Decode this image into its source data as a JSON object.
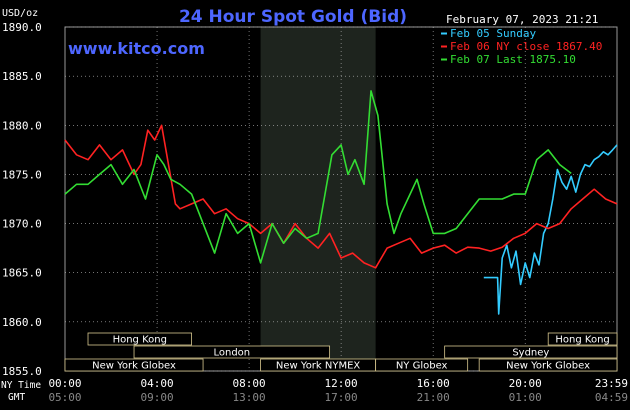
{
  "chart_data": {
    "type": "line",
    "title": "24 Hour Spot Gold (Bid)",
    "website": "www.kitco.com",
    "timestamp": "February 07, 2023 21:21",
    "y_unit": "USD/oz",
    "ylim": [
      1855.0,
      1890.0
    ],
    "y_ticks": [
      "1890.0",
      "1885.0",
      "1880.0",
      "1875.0",
      "1870.0",
      "1865.0",
      "1860.0",
      "1855.0"
    ],
    "x_label_rows": [
      "NY Time",
      "GMT"
    ],
    "x_ticks_ny": [
      "00:00",
      "04:00",
      "08:00",
      "12:00",
      "16:00",
      "20:00",
      "23:59"
    ],
    "x_ticks_gmt": [
      "05:00",
      "09:00",
      "13:00",
      "17:00",
      "21:00",
      "01:00",
      "04:59"
    ],
    "grid": true,
    "legend_position": "top-right",
    "highlight_hours": [
      8.5,
      13.5
    ],
    "series": [
      {
        "name": "Feb 05 Sunday",
        "color": "#33ccff",
        "x": [
          18.2,
          18.5,
          18.8,
          18.85,
          19.0,
          19.2,
          19.4,
          19.6,
          19.8,
          20.0,
          20.2,
          20.4,
          20.6,
          20.8,
          21.0,
          21.2,
          21.4,
          21.6,
          21.8,
          22.0,
          22.2,
          22.4,
          22.6,
          22.8,
          23.0,
          23.2,
          23.4,
          23.6,
          23.8,
          23.99
        ],
        "y": [
          1864.5,
          1864.5,
          1864.5,
          1860.8,
          1866.5,
          1867.8,
          1865.5,
          1867.2,
          1863.8,
          1866.0,
          1864.5,
          1867.0,
          1865.8,
          1869.0,
          1870.0,
          1872.5,
          1875.5,
          1874.2,
          1873.5,
          1874.8,
          1873.2,
          1875.0,
          1876.0,
          1875.8,
          1876.5,
          1876.8,
          1877.3,
          1877.0,
          1877.5,
          1878.0
        ]
      },
      {
        "name": "Feb 06 NY close 1867.40",
        "color": "#ff2222",
        "x": [
          0.0,
          0.5,
          1.0,
          1.5,
          2.0,
          2.5,
          3.0,
          3.3,
          3.6,
          3.9,
          4.2,
          4.5,
          4.8,
          5.0,
          5.5,
          6.0,
          6.5,
          7.0,
          7.5,
          8.0,
          8.5,
          9.0,
          9.5,
          10.0,
          10.5,
          11.0,
          11.5,
          12.0,
          12.5,
          13.0,
          13.5,
          14.0,
          14.5,
          15.0,
          15.5,
          16.0,
          16.5,
          17.0,
          17.5,
          18.0,
          18.5,
          19.0,
          19.5,
          20.0,
          20.5,
          21.0,
          21.5,
          22.0,
          22.5,
          23.0,
          23.5,
          23.99
        ],
        "y": [
          1878.5,
          1877.0,
          1876.5,
          1878.0,
          1876.5,
          1877.5,
          1875.0,
          1876.0,
          1879.5,
          1878.5,
          1880.0,
          1876.0,
          1872.0,
          1871.5,
          1872.0,
          1872.5,
          1871.0,
          1871.5,
          1870.5,
          1870.0,
          1869.0,
          1870.0,
          1868.0,
          1870.0,
          1868.5,
          1867.5,
          1869.0,
          1866.5,
          1867.0,
          1866.0,
          1865.5,
          1867.5,
          1868.0,
          1868.5,
          1867.0,
          1867.5,
          1867.8,
          1867.0,
          1867.6,
          1867.5,
          1867.2,
          1867.6,
          1868.5,
          1869.0,
          1870.0,
          1869.5,
          1870.0,
          1871.5,
          1872.5,
          1873.5,
          1872.5,
          1872.0
        ]
      },
      {
        "name": "Feb 07 Last 1875.10",
        "color": "#33dd33",
        "x": [
          0.0,
          0.5,
          1.0,
          1.5,
          2.0,
          2.5,
          3.0,
          3.5,
          4.0,
          4.3,
          4.6,
          5.0,
          5.5,
          6.0,
          6.5,
          7.0,
          7.5,
          8.0,
          8.5,
          9.0,
          9.5,
          10.0,
          10.5,
          11.0,
          11.3,
          11.6,
          12.0,
          12.3,
          12.6,
          13.0,
          13.3,
          13.6,
          14.0,
          14.3,
          14.6,
          15.0,
          15.3,
          15.6,
          16.0,
          16.5,
          17.0,
          17.5,
          18.0,
          18.5,
          19.0,
          19.5,
          20.0,
          20.5,
          21.0,
          21.5,
          22.0
        ],
        "y": [
          1873.0,
          1874.0,
          1874.0,
          1875.0,
          1876.0,
          1874.0,
          1875.5,
          1872.5,
          1877.0,
          1876.0,
          1874.5,
          1874.0,
          1873.0,
          1870.0,
          1867.0,
          1871.0,
          1869.0,
          1870.0,
          1866.0,
          1870.0,
          1868.0,
          1869.5,
          1868.5,
          1869.0,
          1873.0,
          1877.0,
          1878.0,
          1875.0,
          1876.5,
          1874.0,
          1883.5,
          1881.0,
          1872.0,
          1869.0,
          1871.0,
          1873.0,
          1874.5,
          1872.0,
          1869.0,
          1869.0,
          1869.5,
          1871.0,
          1872.5,
          1872.5,
          1872.5,
          1873.0,
          1873.0,
          1876.5,
          1877.5,
          1876.0,
          1875.1
        ]
      }
    ],
    "session_bars": [
      {
        "label": "Hong Kong",
        "start": 1.0,
        "end": 5.5,
        "row": 0
      },
      {
        "label": "Hong Kong",
        "start": 21.0,
        "end": 23.99,
        "row": 0
      },
      {
        "label": "London",
        "start": 3.0,
        "end": 11.5,
        "row": 1
      },
      {
        "label": "Sydney",
        "start": 16.5,
        "end": 23.99,
        "row": 1
      },
      {
        "label": "New York Globex",
        "start": 0.0,
        "end": 6.0,
        "row": 2
      },
      {
        "label": "New York NYMEX",
        "start": 8.5,
        "end": 13.5,
        "row": 2
      },
      {
        "label": "NY Globex",
        "start": 13.5,
        "end": 17.5,
        "row": 2
      },
      {
        "label": "New York Globex",
        "start": 18.0,
        "end": 23.99,
        "row": 2
      }
    ]
  }
}
